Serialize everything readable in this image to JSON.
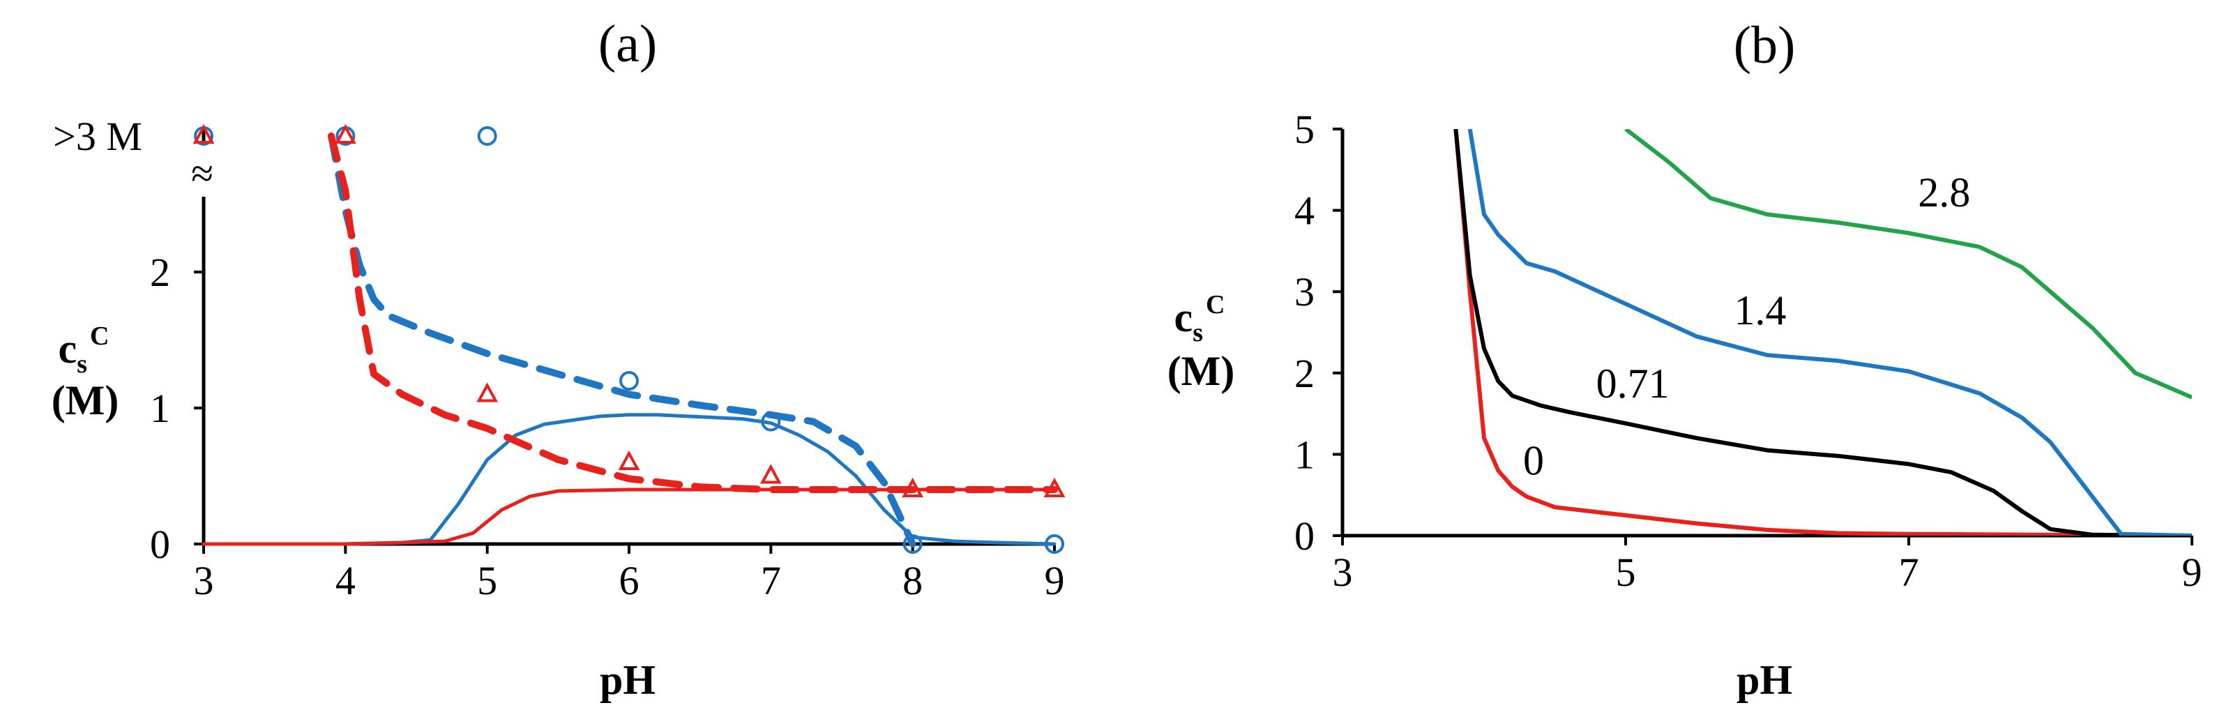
{
  "chart_data": [
    {
      "panel": "(a)",
      "type": "line",
      "xlabel": "pH",
      "ylabel_main": "c",
      "ylabel_sub": "s",
      "ylabel_sup": "C",
      "ylabel_unit": "(M)",
      "xlim": [
        3,
        9
      ],
      "ylim": [
        0,
        3
      ],
      "xticks": [
        "3",
        "4",
        "5",
        "6",
        "7",
        "8",
        "9"
      ],
      "yticks": [
        "0",
        "1",
        "2"
      ],
      "break_label": ">3 M",
      "break_symbol": "≈",
      "series": [
        {
          "style": "solid",
          "color": "#1f77c4",
          "x": [
            3,
            3.5,
            4,
            4.4,
            4.6,
            4.8,
            5,
            5.2,
            5.4,
            5.6,
            5.8,
            6,
            6.2,
            6.4,
            6.6,
            6.8,
            7,
            7.2,
            7.4,
            7.6,
            7.8,
            8,
            8.3,
            8.6,
            9
          ],
          "y": [
            0,
            0,
            0,
            0.01,
            0.03,
            0.3,
            0.62,
            0.8,
            0.88,
            0.91,
            0.94,
            0.95,
            0.95,
            0.94,
            0.93,
            0.92,
            0.89,
            0.8,
            0.68,
            0.5,
            0.25,
            0.05,
            0.02,
            0.01,
            0
          ]
        },
        {
          "style": "solid",
          "color": "#e8211c",
          "x": [
            3,
            3.5,
            4,
            4.4,
            4.7,
            4.9,
            5.1,
            5.3,
            5.5,
            6,
            7,
            8,
            9
          ],
          "y": [
            0,
            0,
            0,
            0.01,
            0.02,
            0.08,
            0.25,
            0.35,
            0.39,
            0.4,
            0.4,
            0.4,
            0.4
          ]
        },
        {
          "style": "dashed",
          "color": "#1f77c4",
          "x": [
            3.9,
            4.0,
            4.1,
            4.2,
            4.3,
            4.6,
            5,
            5.5,
            6,
            6.5,
            7,
            7.3,
            7.6,
            7.8,
            8.0
          ],
          "y": [
            3.0,
            2.45,
            2.05,
            1.8,
            1.68,
            1.55,
            1.4,
            1.25,
            1.1,
            1.02,
            0.95,
            0.9,
            0.72,
            0.45,
            0.0
          ]
        },
        {
          "style": "dashed",
          "color": "#e8211c",
          "x": [
            3.9,
            4.0,
            4.1,
            4.2,
            4.4,
            4.7,
            5,
            5.5,
            6,
            6.5,
            7,
            8,
            9
          ],
          "y": [
            3.0,
            2.6,
            1.8,
            1.25,
            1.1,
            0.95,
            0.85,
            0.62,
            0.48,
            0.42,
            0.4,
            0.4,
            0.4
          ]
        }
      ],
      "markers": [
        {
          "shape": "circle",
          "color": "#1f77c4",
          "x": [
            3,
            4,
            5,
            6,
            7,
            8,
            9
          ],
          "y": [
            3,
            3,
            3,
            1.2,
            0.9,
            0.0,
            0.0
          ]
        },
        {
          "shape": "triangle",
          "color": "#e8211c",
          "x": [
            3,
            4,
            5,
            6,
            7,
            8,
            9
          ],
          "y": [
            3,
            3,
            1.1,
            0.6,
            0.5,
            0.4,
            0.4
          ]
        }
      ]
    },
    {
      "panel": "(b)",
      "type": "line",
      "xlabel": "pH",
      "ylabel_main": "c",
      "ylabel_sub": "s",
      "ylabel_sup": "C",
      "ylabel_unit": "(M)",
      "xlim": [
        3,
        9
      ],
      "ylim": [
        0,
        5
      ],
      "xticks": [
        "3",
        "5",
        "7",
        "9"
      ],
      "yticks": [
        "0",
        "1",
        "2",
        "3",
        "4",
        "5"
      ],
      "series": [
        {
          "name": "0",
          "color": "#e8211c",
          "label_x": 4.35,
          "label_y": 0.75,
          "x": [
            3.8,
            3.9,
            4.0,
            4.1,
            4.2,
            4.3,
            4.5,
            5,
            5.5,
            6,
            6.5,
            7,
            8,
            9
          ],
          "y": [
            5.0,
            3.0,
            1.2,
            0.8,
            0.6,
            0.48,
            0.35,
            0.25,
            0.15,
            0.07,
            0.03,
            0.02,
            0.01,
            0.0
          ]
        },
        {
          "name": "0.71",
          "color": "#000000",
          "label_x": 5.05,
          "label_y": 1.7,
          "x": [
            3.8,
            3.9,
            4.0,
            4.1,
            4.2,
            4.4,
            4.6,
            5,
            5.5,
            6,
            6.5,
            7,
            7.3,
            7.6,
            7.8,
            8.0,
            8.3,
            9
          ],
          "y": [
            5.0,
            3.2,
            2.3,
            1.9,
            1.72,
            1.6,
            1.52,
            1.38,
            1.2,
            1.05,
            0.98,
            0.88,
            0.78,
            0.55,
            0.3,
            0.08,
            0.01,
            0.0
          ]
        },
        {
          "name": "1.4",
          "color": "#1f77c4",
          "label_x": 5.95,
          "label_y": 2.6,
          "x": [
            3.9,
            4.0,
            4.1,
            4.3,
            4.5,
            5,
            5.5,
            6,
            6.5,
            7,
            7.5,
            7.8,
            8.0,
            8.2,
            8.5,
            9
          ],
          "y": [
            5.0,
            3.95,
            3.7,
            3.35,
            3.25,
            2.85,
            2.45,
            2.22,
            2.15,
            2.02,
            1.75,
            1.45,
            1.15,
            0.7,
            0.02,
            0.0
          ]
        },
        {
          "name": "2.8",
          "color": "#23a347",
          "label_x": 7.25,
          "label_y": 4.05,
          "x": [
            5,
            5.3,
            5.6,
            6,
            6.5,
            7,
            7.5,
            7.8,
            8.0,
            8.3,
            8.6,
            9
          ],
          "y": [
            5.0,
            4.6,
            4.15,
            3.95,
            3.85,
            3.72,
            3.55,
            3.3,
            3.0,
            2.55,
            2.0,
            1.7
          ]
        }
      ]
    }
  ]
}
